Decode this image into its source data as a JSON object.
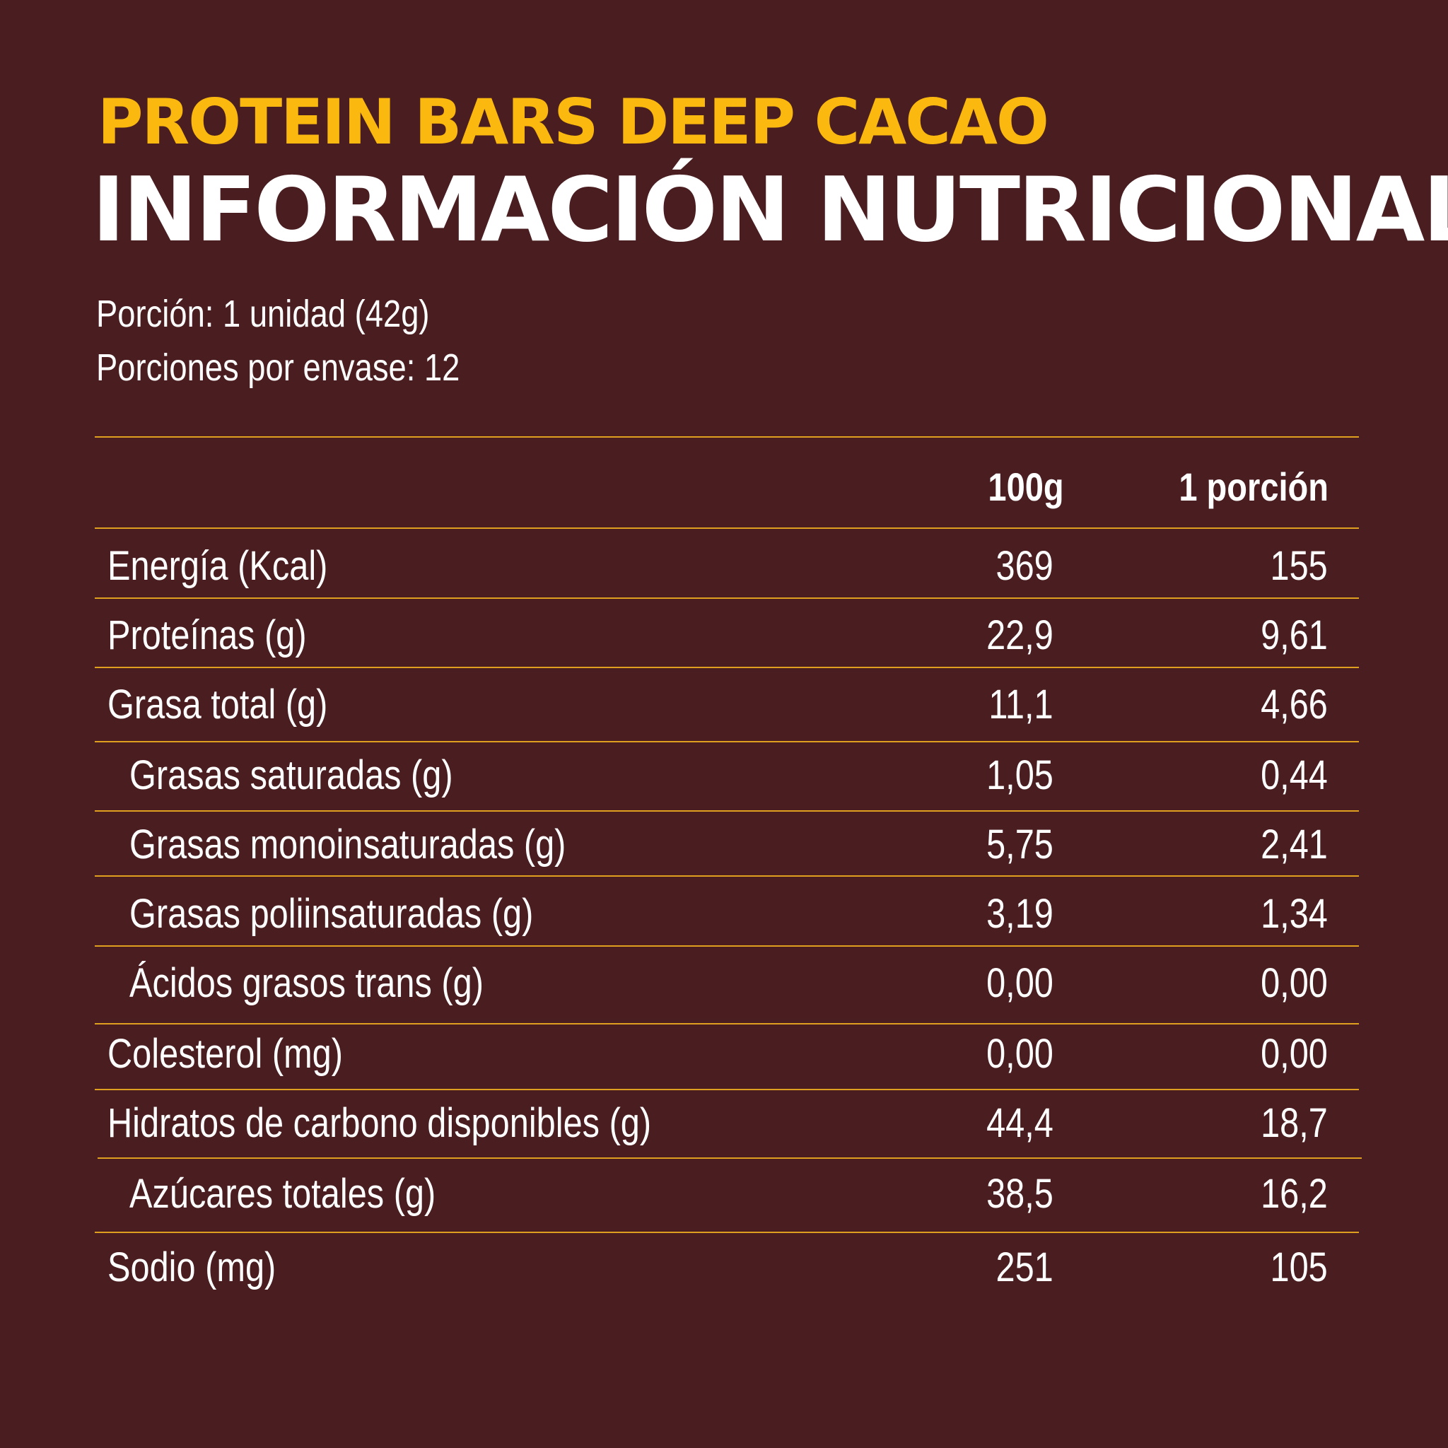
{
  "colors": {
    "background": "#4a1e20",
    "accent": "#fbb80f",
    "text": "#ffffff",
    "rule": "#e0a01f"
  },
  "product_name": "PROTEIN BARS DEEP CACAO",
  "title": "INFORMACIÓN NUTRICIONAL",
  "serving_size": "Porción: 1 unidad (42g)",
  "servings_per_container": "Porciones por envase: 12",
  "table": {
    "columns": [
      "100g",
      "1 porción"
    ],
    "rows": [
      {
        "label": "Energía (Kcal)",
        "per_100g": "369",
        "per_serving": "155",
        "indent": false
      },
      {
        "label": "Proteínas (g)",
        "per_100g": "22,9",
        "per_serving": "9,61",
        "indent": false
      },
      {
        "label": "Grasa total (g)",
        "per_100g": "11,1",
        "per_serving": "4,66",
        "indent": false
      },
      {
        "label": "Grasas saturadas (g)",
        "per_100g": "1,05",
        "per_serving": "0,44",
        "indent": true
      },
      {
        "label": "Grasas monoinsaturadas (g)",
        "per_100g": "5,75",
        "per_serving": "2,41",
        "indent": true
      },
      {
        "label": "Grasas poliinsaturadas (g)",
        "per_100g": "3,19",
        "per_serving": "1,34",
        "indent": true
      },
      {
        "label": "Ácidos grasos trans (g)",
        "per_100g": "0,00",
        "per_serving": "0,00",
        "indent": true
      },
      {
        "label": "Colesterol (mg)",
        "per_100g": "0,00",
        "per_serving": "0,00",
        "indent": false
      },
      {
        "label": "Hidratos de carbono disponibles (g)",
        "per_100g": "44,4",
        "per_serving": "18,7",
        "indent": false
      },
      {
        "label": "Azúcares totales (g)",
        "per_100g": "38,5",
        "per_serving": "16,2",
        "indent": true
      },
      {
        "label": "Sodio (mg)",
        "per_100g": "251",
        "per_serving": "105",
        "indent": false
      }
    ]
  }
}
